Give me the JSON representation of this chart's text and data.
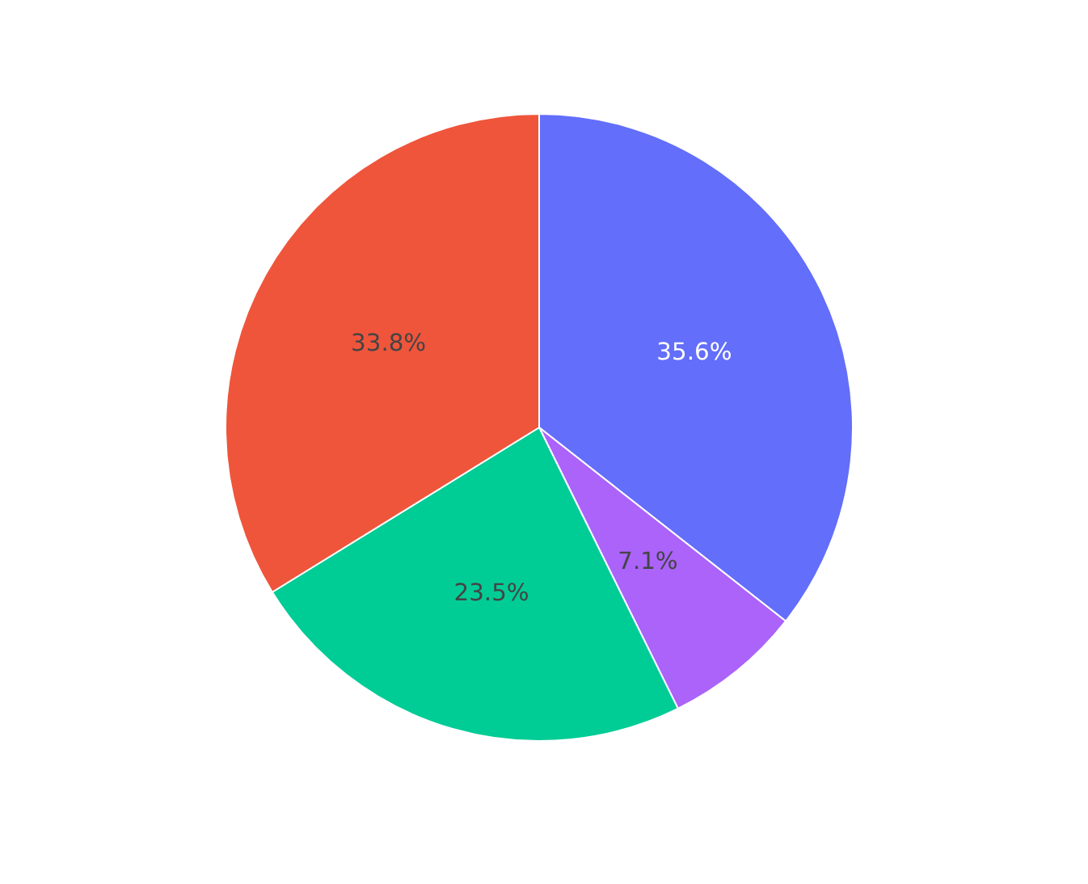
{
  "chart_data": {
    "type": "pie",
    "categories": [
      null,
      null,
      null,
      null
    ],
    "values": [
      35.6,
      7.1,
      23.5,
      33.8
    ],
    "colors": [
      "#636efa",
      "#ab63fa",
      "#00cc96",
      "#ef553b"
    ],
    "value_labels": [
      "35.6%",
      "7.1%",
      "23.5%",
      "33.8%"
    ]
  }
}
